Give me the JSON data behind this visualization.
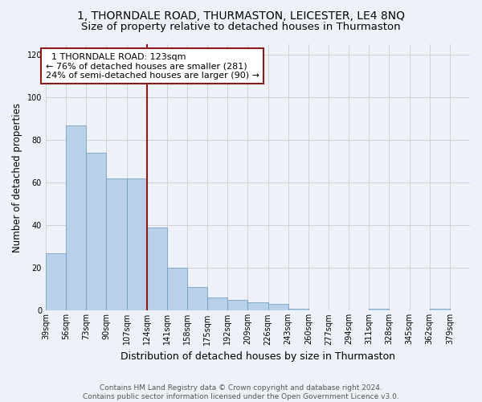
{
  "title_line1": "1, THORNDALE ROAD, THURMASTON, LEICESTER, LE4 8NQ",
  "title_line2": "Size of property relative to detached houses in Thurmaston",
  "xlabel": "Distribution of detached houses by size in Thurmaston",
  "ylabel": "Number of detached properties",
  "bar_heights": [
    27,
    87,
    74,
    62,
    62,
    39,
    20,
    11,
    6,
    5,
    4,
    3,
    1,
    0,
    0,
    0,
    1,
    0,
    0,
    1,
    0
  ],
  "bin_left_edges": [
    39,
    56,
    73,
    90,
    107,
    124,
    141,
    158,
    175,
    192,
    209,
    226,
    243,
    260,
    277,
    294,
    311,
    328,
    345,
    362,
    379
  ],
  "bin_width": 17,
  "bin_labels": [
    "39sqm",
    "56sqm",
    "73sqm",
    "90sqm",
    "107sqm",
    "124sqm",
    "141sqm",
    "158sqm",
    "175sqm",
    "192sqm",
    "209sqm",
    "226sqm",
    "243sqm",
    "260sqm",
    "277sqm",
    "294sqm",
    "311sqm",
    "328sqm",
    "345sqm",
    "362sqm",
    "379sqm"
  ],
  "property_line_x": 124,
  "bar_color": "#b8d0e8",
  "bar_edge_color": "#6699bb",
  "highlight_line_color": "#8b1a1a",
  "annotation_line1": "  1 THORNDALE ROAD: 123sqm",
  "annotation_line2": "← 76% of detached houses are smaller (281)",
  "annotation_line3": "24% of semi-detached houses are larger (90) →",
  "annotation_box_color": "#ffffff",
  "annotation_box_edge_color": "#8b1a1a",
  "ylim_max": 125,
  "yticks": [
    0,
    20,
    40,
    60,
    80,
    100,
    120
  ],
  "grid_color": "#cccccc",
  "background_color": "#eef2f8",
  "footer_line1": "Contains HM Land Registry data © Crown copyright and database right 2024.",
  "footer_line2": "Contains public sector information licensed under the Open Government Licence v3.0.",
  "title_fontsize": 10,
  "subtitle_fontsize": 9.5,
  "xlabel_fontsize": 9,
  "ylabel_fontsize": 8.5,
  "tick_fontsize": 7,
  "annotation_fontsize": 8,
  "footer_fontsize": 6.5
}
